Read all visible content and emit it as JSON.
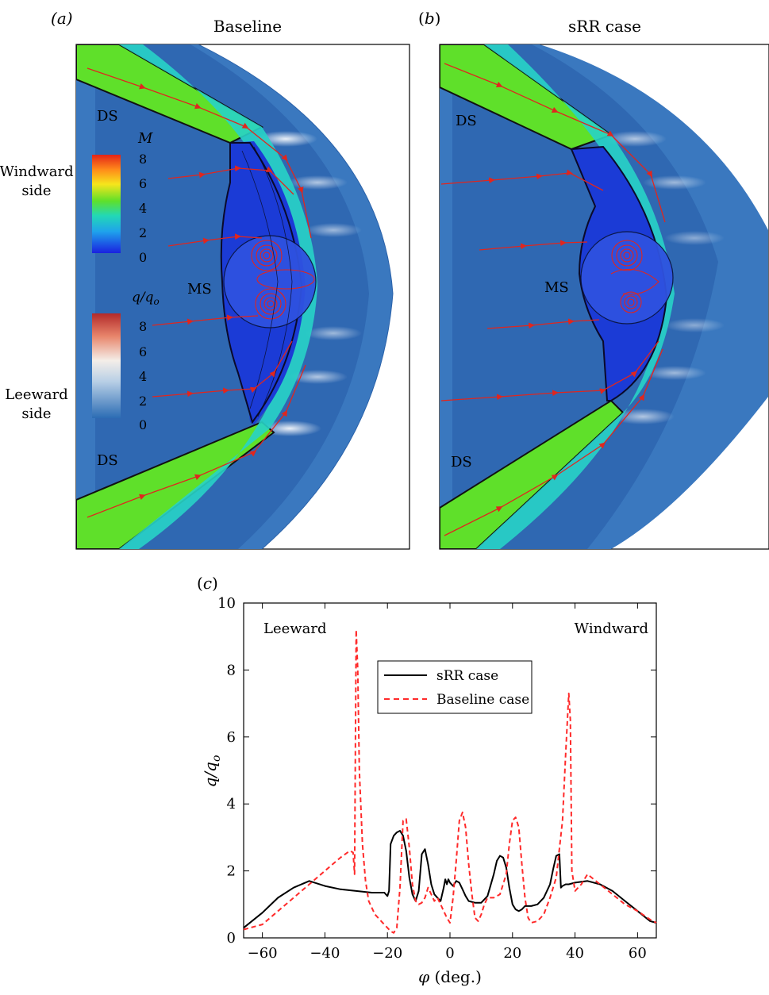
{
  "panel_a": {
    "label": "(a)",
    "title": "Baseline",
    "ds_top": "DS",
    "ds_bottom": "DS",
    "ms": "MS",
    "windward_1": "Windward",
    "windward_2": "side",
    "leeward_1": "Leeward",
    "leeward_2": "side",
    "mach_bar": {
      "symbol": "M",
      "ticks": [
        "8",
        "6",
        "4",
        "2",
        "0"
      ]
    },
    "heat_bar": {
      "symbol_q": "q/q",
      "symbol_sub": "o",
      "ticks": [
        "8",
        "6",
        "4",
        "2",
        "0"
      ]
    }
  },
  "panel_b": {
    "label": "(b)",
    "title": "sRR case",
    "ds_top": "DS",
    "ds_bottom": "DS",
    "ms": "MS"
  },
  "panel_c": {
    "label": "(c)"
  },
  "colors": {
    "body_blue": "#1b3bd6",
    "cold_green": "#4fe02a",
    "shock_blue": "#3a78bf",
    "streamline_red": "#e0261e",
    "sRR_line": "#000000",
    "baseline_line": "#ff2a2a"
  },
  "chart_data": {
    "type": "line",
    "title": "",
    "xlabel": "φ (deg.)",
    "ylabel": "q/q_o",
    "ylabel_main": "q/q",
    "ylabel_sub": "o",
    "xlim": [
      -66,
      66
    ],
    "ylim": [
      0,
      10
    ],
    "xticks": [
      -60,
      -40,
      -20,
      0,
      20,
      40,
      60
    ],
    "yticks": [
      0,
      2,
      4,
      6,
      8,
      10
    ],
    "xtick_labels": [
      "−60",
      "−40",
      "−20",
      "0",
      "20",
      "40",
      "60"
    ],
    "ytick_labels": [
      "0",
      "2",
      "4",
      "6",
      "8",
      "10"
    ],
    "annotations": [
      "Leeward",
      "Windward"
    ],
    "legend_position": "upper-center",
    "series": [
      {
        "name": "sRR case",
        "style": "solid",
        "x": [
          -66,
          -60,
          -55,
          -50,
          -45,
          -40,
          -35,
          -30,
          -25,
          -21,
          -20,
          -19.5,
          -19,
          -18,
          -17,
          -16,
          -15,
          -14,
          -13,
          -12,
          -11,
          -10,
          -9,
          -8,
          -7,
          -6,
          -5,
          -4,
          -3,
          -2,
          -1.5,
          -1,
          -0.5,
          0,
          1,
          2,
          3,
          4,
          5,
          6,
          8,
          10,
          12,
          14,
          15,
          16,
          17,
          18,
          19,
          20,
          21,
          22,
          23,
          24,
          25,
          26,
          28,
          30,
          32,
          33,
          34,
          35,
          35.5,
          36,
          37,
          38,
          40,
          44,
          48,
          52,
          56,
          60,
          64,
          66
        ],
        "y": [
          0.3,
          0.75,
          1.2,
          1.5,
          1.7,
          1.55,
          1.45,
          1.4,
          1.35,
          1.35,
          1.25,
          1.4,
          2.8,
          3.05,
          3.15,
          3.2,
          3.05,
          2.6,
          1.8,
          1.3,
          1.1,
          1.4,
          2.5,
          2.65,
          2.2,
          1.6,
          1.3,
          1.2,
          1.1,
          1.5,
          1.75,
          1.6,
          1.75,
          1.65,
          1.55,
          1.7,
          1.65,
          1.45,
          1.25,
          1.1,
          1.05,
          1.05,
          1.25,
          1.9,
          2.3,
          2.45,
          2.4,
          2.1,
          1.5,
          1.0,
          0.85,
          0.8,
          0.85,
          0.95,
          0.95,
          0.95,
          1.0,
          1.2,
          1.6,
          2.05,
          2.45,
          2.5,
          1.5,
          1.55,
          1.6,
          1.6,
          1.65,
          1.7,
          1.6,
          1.4,
          1.1,
          0.8,
          0.5,
          0.45
        ]
      },
      {
        "name": "Baseline case",
        "style": "dashed",
        "x": [
          -66,
          -60,
          -55,
          -50,
          -45,
          -40,
          -35,
          -32,
          -31,
          -30.5,
          -30,
          -29.5,
          -29,
          -28,
          -27,
          -26,
          -25,
          -24,
          -22,
          -20,
          -19,
          -18,
          -17,
          -16,
          -15,
          -14,
          -13,
          -12,
          -11,
          -10,
          -9,
          -8,
          -7,
          -6,
          -5,
          -4,
          -3,
          -2,
          -1,
          0,
          1,
          2,
          3,
          4,
          5,
          6,
          7,
          8,
          9,
          10,
          11,
          12,
          14,
          16,
          18,
          19,
          20,
          21,
          22,
          23,
          24,
          25,
          26,
          28,
          30,
          32,
          34,
          36,
          37,
          38,
          38.5,
          39,
          40,
          42,
          44,
          48,
          52,
          56,
          60,
          64,
          66
        ],
        "y": [
          0.25,
          0.4,
          0.8,
          1.2,
          1.6,
          2.0,
          2.4,
          2.6,
          2.55,
          1.9,
          9.2,
          8.0,
          5.0,
          2.8,
          1.7,
          1.1,
          0.9,
          0.7,
          0.5,
          0.3,
          0.2,
          0.15,
          0.3,
          1.5,
          3.5,
          3.55,
          2.7,
          1.6,
          1.1,
          1.0,
          1.05,
          1.2,
          1.5,
          1.3,
          1.1,
          1.2,
          1.0,
          0.8,
          0.6,
          0.45,
          1.2,
          2.3,
          3.5,
          3.75,
          3.3,
          2.2,
          1.3,
          0.6,
          0.5,
          0.7,
          1.0,
          1.2,
          1.2,
          1.3,
          1.9,
          2.8,
          3.5,
          3.6,
          3.3,
          2.2,
          1.2,
          0.6,
          0.45,
          0.5,
          0.7,
          1.2,
          1.8,
          3.5,
          5.5,
          7.3,
          6.5,
          2.0,
          1.4,
          1.6,
          1.9,
          1.6,
          1.3,
          1.0,
          0.8,
          0.55,
          0.45
        ]
      }
    ]
  }
}
